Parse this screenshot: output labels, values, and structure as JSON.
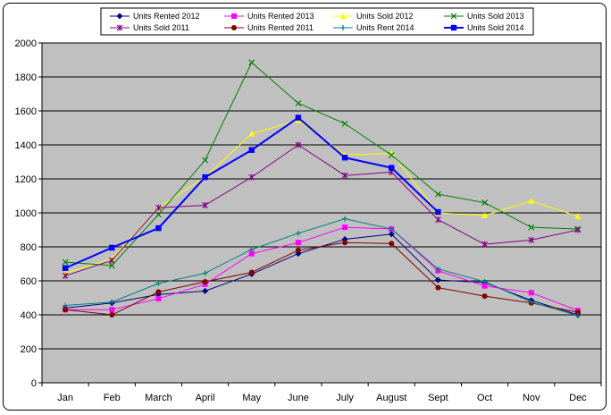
{
  "chart_data": {
    "type": "line",
    "categories": [
      "Jan",
      "Feb",
      "March",
      "April",
      "May",
      "June",
      "July",
      "August",
      "Sept",
      "Oct",
      "Nov",
      "Dec"
    ],
    "ylim": [
      0,
      2000
    ],
    "yticks": [
      0,
      200,
      400,
      600,
      800,
      1000,
      1200,
      1400,
      1600,
      1800,
      2000
    ],
    "grid": true,
    "legend_position": "top",
    "plot_background": "#c0c0c0",
    "series": [
      {
        "name": "Units Rented 2012",
        "color": "#000080",
        "marker": "diamond",
        "width": 1,
        "values": [
          440,
          470,
          520,
          540,
          640,
          760,
          845,
          875,
          605,
          590,
          485,
          400
        ]
      },
      {
        "name": "Units Rented 2013",
        "color": "#ff00ff",
        "marker": "square",
        "width": 1,
        "values": [
          430,
          430,
          495,
          580,
          760,
          825,
          915,
          905,
          660,
          570,
          530,
          425
        ]
      },
      {
        "name": "Units Sold 2012",
        "color": "#ffff00",
        "marker": "triangle",
        "width": 1,
        "values": [
          645,
          730,
          1030,
          1210,
          1465,
          1545,
          1340,
          1350,
          1000,
          985,
          1070,
          980
        ]
      },
      {
        "name": "Units Sold 2013",
        "color": "#008000",
        "marker": "x",
        "width": 1,
        "values": [
          710,
          690,
          990,
          1310,
          1885,
          1645,
          1525,
          1340,
          1110,
          1060,
          915,
          905
        ]
      },
      {
        "name": "Units Sold 2011",
        "color": "#800080",
        "marker": "star",
        "width": 1,
        "values": [
          630,
          720,
          1030,
          1045,
          1210,
          1400,
          1220,
          1240,
          960,
          815,
          840,
          900
        ]
      },
      {
        "name": "Units Rented 2011",
        "color": "#800000",
        "marker": "circle",
        "width": 1,
        "values": [
          430,
          400,
          535,
          595,
          650,
          780,
          825,
          820,
          560,
          510,
          470,
          415
        ]
      },
      {
        "name": "Units Rent 2014",
        "color": "#008080",
        "marker": "plus",
        "width": 1,
        "values": [
          455,
          475,
          585,
          645,
          785,
          880,
          965,
          905,
          670,
          595,
          475,
          395
        ]
      },
      {
        "name": "Units Sold 2014",
        "color": "#0000ff",
        "marker": "square",
        "width": 2,
        "values": [
          675,
          795,
          910,
          1210,
          1370,
          1560,
          1325,
          1265,
          1005,
          null,
          null,
          null
        ]
      }
    ]
  }
}
